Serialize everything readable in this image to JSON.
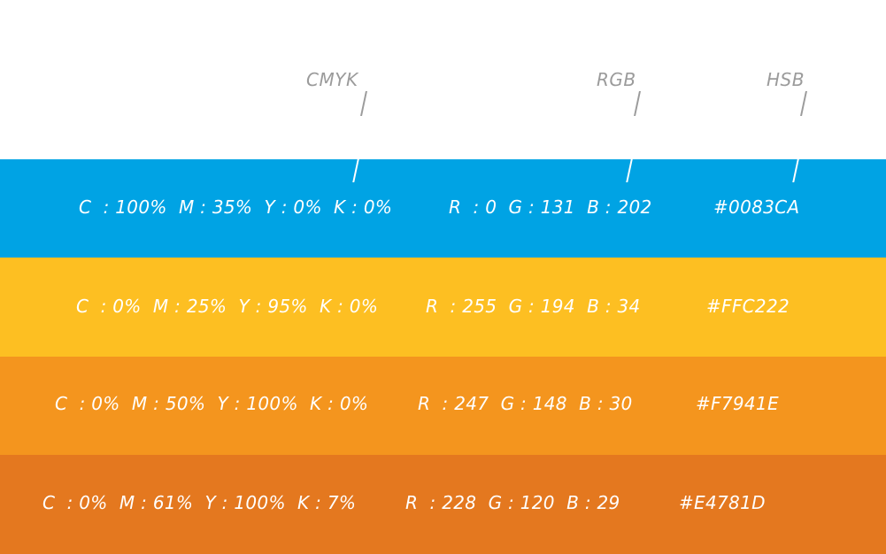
{
  "headers": {
    "cmyk": "CMYK",
    "rgb": "RGB",
    "hsb": "HSB"
  },
  "bands": [
    {
      "color": "#00A3E4",
      "cmyk": "C  : 100%  M : 35%  Y : 0%  K : 0%",
      "rgb": "R  : 0  G : 131  B : 202",
      "hex": "#0083CA"
    },
    {
      "color": "#FDBF22",
      "cmyk": "C  : 0%  M : 25%  Y : 95%  K : 0%",
      "rgb": "R  : 255  G : 194  B : 34",
      "hex": "#FFC222"
    },
    {
      "color": "#F4951E",
      "cmyk": "C  : 0%  M : 50%  Y : 100%  K : 0%",
      "rgb": "R  : 247  G : 148  B : 30",
      "hex": "#F7941E"
    },
    {
      "color": "#E4781F",
      "cmyk": "C  : 0%  M : 61%  Y : 100%  K : 7%",
      "rgb": "R  : 228  G : 120  B : 29",
      "hex": "#E4781D"
    }
  ]
}
